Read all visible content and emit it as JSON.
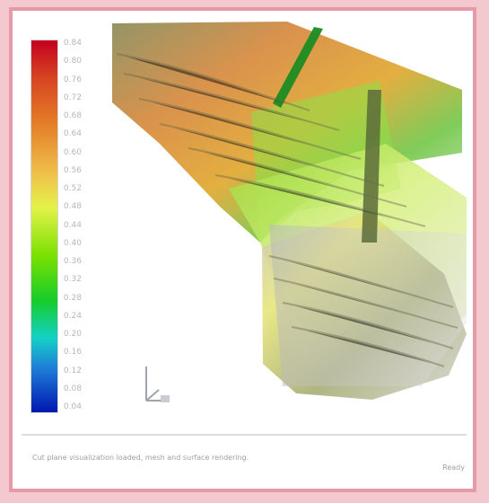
{
  "app": {
    "title": ""
  },
  "legend": {
    "ticks": [
      "0.84",
      "0.80",
      "0.76",
      "0.72",
      "0.68",
      "0.64",
      "0.60",
      "0.56",
      "0.52",
      "0.48",
      "0.44",
      "0.40",
      "0.36",
      "0.32",
      "0.28",
      "0.24",
      "0.20",
      "0.16",
      "0.12",
      "0.08",
      "0.04"
    ],
    "colors": [
      "#c40020",
      "#d74422",
      "#e37c28",
      "#f0c14a",
      "#e3f34b",
      "#7ae000",
      "#16cc2b",
      "#14d1c6",
      "#1f7fd8",
      "#0017b1"
    ]
  },
  "status": {
    "message": "Cut plane visualization loaded, mesh and surface rendering.",
    "right": "Ready"
  },
  "icons": {
    "axis": "axis-triad-icon"
  }
}
